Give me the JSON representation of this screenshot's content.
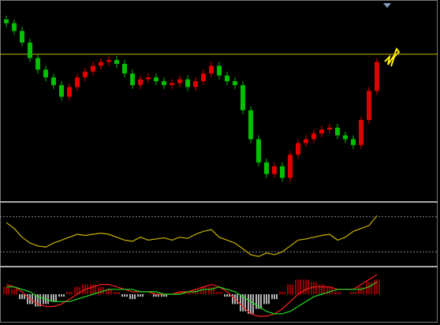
{
  "chart_data": [
    {
      "type": "candlestick",
      "up_color": "#e00000",
      "down_color": "#00c000",
      "ylim": [
        0,
        100
      ],
      "reference_line": 74,
      "reference_color": "#c8b400",
      "open": [
        92,
        90,
        86,
        80,
        72,
        66,
        62,
        58,
        52,
        57,
        62,
        65,
        68,
        70,
        71,
        69,
        64,
        58,
        61,
        62,
        60,
        58,
        59,
        61,
        57,
        60,
        64,
        68,
        63,
        60,
        58,
        45,
        30,
        18,
        12,
        16,
        10,
        22,
        28,
        30,
        33,
        35,
        36,
        32,
        30,
        27,
        40,
        55
      ],
      "high": [
        94,
        92,
        88,
        82,
        74,
        68,
        64,
        60,
        59,
        64,
        67,
        70,
        72,
        73,
        73,
        71,
        66,
        63,
        64,
        64,
        62,
        61,
        63,
        63,
        62,
        66,
        70,
        70,
        65,
        62,
        60,
        47,
        32,
        20,
        18,
        18,
        24,
        30,
        32,
        35,
        37,
        38,
        38,
        34,
        32,
        42,
        57,
        72
      ],
      "low": [
        88,
        84,
        78,
        70,
        64,
        60,
        56,
        50,
        50,
        55,
        60,
        63,
        66,
        68,
        67,
        62,
        56,
        56,
        59,
        58,
        56,
        56,
        57,
        55,
        55,
        58,
        62,
        61,
        58,
        56,
        43,
        28,
        16,
        10,
        10,
        8,
        8,
        20,
        26,
        28,
        31,
        33,
        30,
        28,
        25,
        25,
        38,
        53
      ],
      "close": [
        90,
        86,
        80,
        72,
        66,
        62,
        58,
        52,
        57,
        62,
        65,
        68,
        70,
        71,
        69,
        64,
        58,
        61,
        62,
        60,
        58,
        59,
        61,
        57,
        60,
        64,
        68,
        63,
        60,
        58,
        45,
        30,
        18,
        12,
        16,
        10,
        22,
        28,
        30,
        33,
        35,
        36,
        32,
        30,
        27,
        40,
        55,
        70
      ]
    },
    {
      "type": "line",
      "ylim": [
        0,
        100
      ],
      "levels": [
        80,
        20
      ],
      "level_color": "#888888",
      "series": [
        {
          "color": "#c8b400",
          "values": [
            70,
            60,
            45,
            35,
            30,
            28,
            35,
            40,
            45,
            50,
            48,
            50,
            52,
            50,
            45,
            40,
            38,
            45,
            40,
            42,
            44,
            40,
            45,
            43,
            50,
            55,
            58,
            45,
            40,
            35,
            25,
            15,
            12,
            18,
            15,
            20,
            30,
            40,
            42,
            45,
            48,
            50,
            40,
            45,
            55,
            60,
            65,
            82
          ]
        }
      ]
    },
    {
      "type": "macd",
      "ylim": [
        -10,
        10
      ],
      "pos_color": "#d40000",
      "neg_color": "#ffffff",
      "histogram": [
        3,
        2,
        -2,
        -4,
        -5,
        -4,
        -3,
        -1,
        1,
        3,
        4,
        4,
        3,
        2,
        1,
        -1,
        -2,
        -1,
        0,
        -1,
        -1,
        0,
        1,
        1,
        2,
        3,
        3,
        1,
        -1,
        -4,
        -7,
        -8,
        -6,
        -4,
        -2,
        1,
        4,
        6,
        6,
        5,
        4,
        3,
        1,
        0,
        1,
        3,
        5,
        6
      ],
      "series": [
        {
          "color": "#ff2020",
          "values": [
            4,
            3,
            1,
            -2,
            -4,
            -5,
            -5,
            -4,
            -2,
            0,
            2,
            3,
            4,
            4,
            3,
            2,
            1,
            1,
            1,
            0,
            0,
            0,
            1,
            1,
            2,
            3,
            4,
            3,
            1,
            -2,
            -5,
            -8,
            -9,
            -9,
            -8,
            -6,
            -3,
            0,
            2,
            3,
            3,
            3,
            2,
            2,
            2,
            4,
            6,
            8
          ]
        },
        {
          "color": "#20e020",
          "values": [
            3,
            3,
            2,
            1,
            -1,
            -2,
            -3,
            -3,
            -3,
            -2,
            -1,
            0,
            1,
            2,
            2,
            2,
            2,
            1,
            1,
            1,
            0,
            0,
            0,
            1,
            1,
            2,
            2,
            3,
            2,
            1,
            -1,
            -3,
            -5,
            -7,
            -8,
            -8,
            -7,
            -5,
            -3,
            -1,
            0,
            1,
            2,
            2,
            2,
            2,
            3,
            5
          ]
        }
      ]
    }
  ]
}
